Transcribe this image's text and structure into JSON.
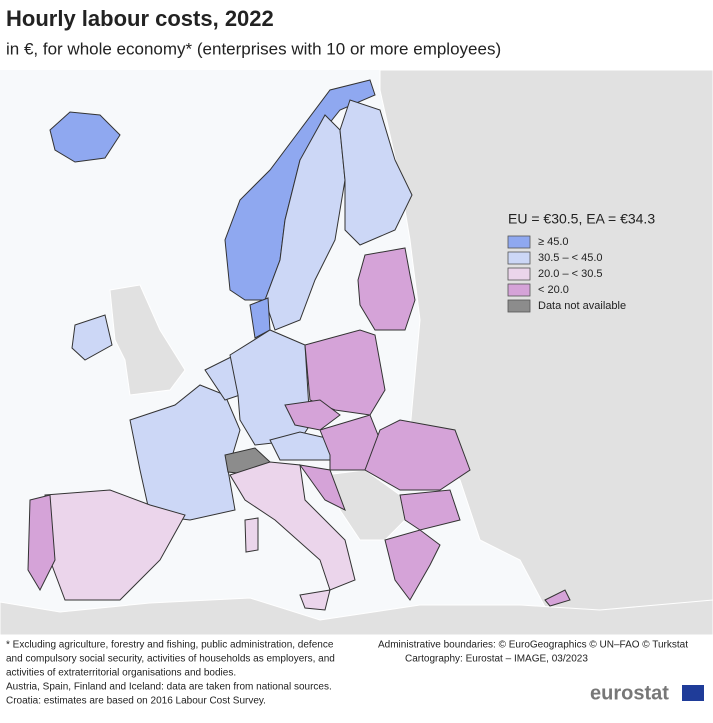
{
  "header": {
    "title": "Hourly labour costs, 2022",
    "subtitle": "in €, for whole economy* (enterprises with 10 or more employees)"
  },
  "legend": {
    "title": "EU = €30.5, EA = €34.3",
    "items": [
      {
        "label": "≥ 45.0",
        "color": "#8fa8f0"
      },
      {
        "label": "30.5 – < 45.0",
        "color": "#ccd7f6"
      },
      {
        "label": "20.0 – < 30.5",
        "color": "#ebd5eb"
      },
      {
        "label": "< 20.0",
        "color": "#d5a3d8"
      },
      {
        "label": "Data not available",
        "color": "#8c8c8c"
      }
    ]
  },
  "footnotes": [
    "* Excluding agriculture, forestry and fishing, public administration, defence",
    "and compulsory social security, activities of households as employers, and",
    "activities of extraterritorial organisations and bodies.",
    "Austria, Spain, Finland and Iceland: data are taken from national sources.",
    "Croatia: estimates are based on 2016 Labour Cost Survey."
  ],
  "credits": [
    "Administrative boundaries: © EuroGeographics © UN–FAO © Turkstat",
    "Cartography: Eurostat – IMAGE, 03/2023"
  ],
  "logo": "eurostat"
}
